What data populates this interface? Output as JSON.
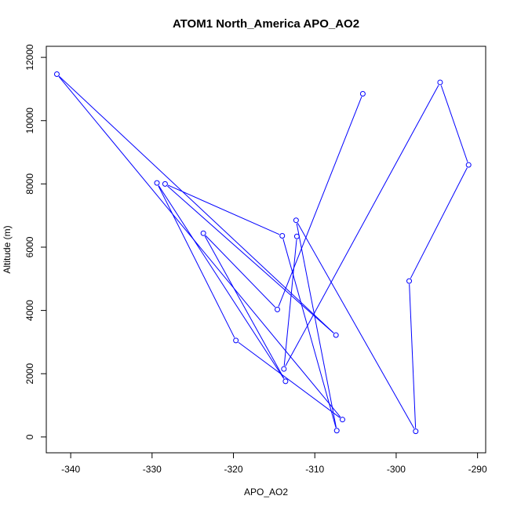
{
  "chart_data": {
    "type": "line",
    "title": "ATOM1 North_America APO_AO2",
    "xlabel": "APO_AO2",
    "ylabel": "Altitude (m)",
    "xlim": [
      -343,
      -289
    ],
    "ylim": [
      -500,
      12350
    ],
    "x_ticks": [
      -340,
      -330,
      -320,
      -310,
      -300,
      -290
    ],
    "y_ticks": [
      0,
      2000,
      4000,
      6000,
      8000,
      10000,
      12000
    ],
    "grid": false,
    "legend": "none",
    "series": [
      {
        "color": "#0000ff",
        "marker": "open-circle",
        "points": [
          {
            "x": -304.1,
            "y": 10850
          },
          {
            "x": -314.6,
            "y": 4030
          },
          {
            "x": -323.7,
            "y": 6440
          },
          {
            "x": -313.6,
            "y": 1760
          },
          {
            "x": -329.4,
            "y": 8030
          },
          {
            "x": -319.7,
            "y": 3050
          },
          {
            "x": -306.6,
            "y": 550
          },
          {
            "x": -341.7,
            "y": 11470
          },
          {
            "x": -307.4,
            "y": 3220
          },
          {
            "x": -328.4,
            "y": 8000
          },
          {
            "x": -314.0,
            "y": 6360
          },
          {
            "x": -307.3,
            "y": 200
          },
          {
            "x": -312.3,
            "y": 6850
          },
          {
            "x": -297.6,
            "y": 180
          },
          {
            "x": -298.4,
            "y": 4930
          },
          {
            "x": -291.1,
            "y": 8600
          },
          {
            "x": -294.6,
            "y": 11210
          },
          {
            "x": -313.8,
            "y": 2150
          },
          {
            "x": -312.2,
            "y": 6340
          }
        ]
      }
    ]
  }
}
